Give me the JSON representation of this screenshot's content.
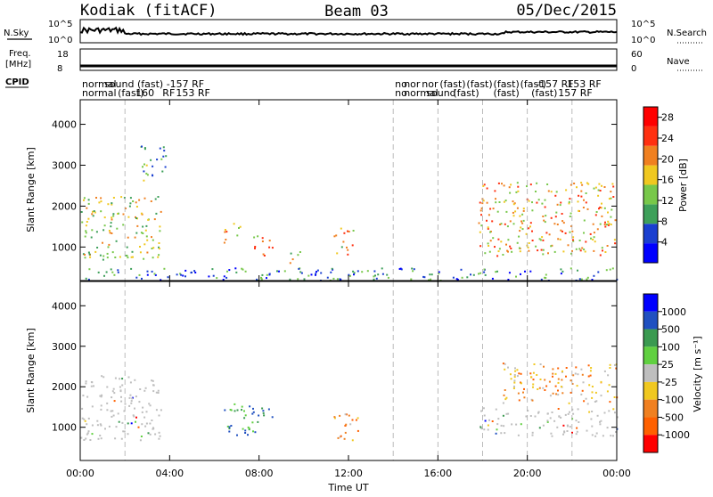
{
  "header": {
    "station": "Kodiak (fitACF)",
    "beam": "Beam 03",
    "date": "05/Dec/2015"
  },
  "strips": {
    "nsky_label": "N.Sky",
    "nsearch_label": "N.Search",
    "noise_ticks": [
      "10^5",
      "10^0"
    ],
    "freq_label_1": "Freq.",
    "freq_label_2": "[MHz]",
    "freq_ticks": [
      "18",
      "8"
    ],
    "nave_label": "Nave",
    "nave_ticks": [
      "60",
      "0"
    ],
    "cpid_label": "CPID"
  },
  "cpid_segments": {
    "row1": [
      {
        "t": 0.0,
        "text": "normal"
      },
      {
        "t": 1.0,
        "text": "sound (fast) -157 RF"
      },
      {
        "t": 14.0,
        "text": "no"
      },
      {
        "t": 14.4,
        "text": "nor"
      },
      {
        "t": 15.2,
        "text": "nor"
      },
      {
        "t": 16.0,
        "text": "(fast)"
      },
      {
        "t": 17.2,
        "text": "(fast)"
      },
      {
        "t": 18.4,
        "text": "(fast)"
      },
      {
        "t": 19.6,
        "text": "(fast)"
      },
      {
        "t": 20.3,
        "text": "-157 RF"
      },
      {
        "t": 21.7,
        "text": "153 RF"
      }
    ],
    "row2": [
      {
        "t": 0.0,
        "text": "normal"
      },
      {
        "t": 1.6,
        "text": "(fast)"
      },
      {
        "t": 2.4,
        "text": "160"
      },
      {
        "t": 3.6,
        "text": "RF"
      },
      {
        "t": 4.2,
        "text": "153 RF"
      },
      {
        "t": 14.0,
        "text": "no"
      },
      {
        "t": 14.4,
        "text": "normal"
      },
      {
        "t": 15.4,
        "text": "sound"
      },
      {
        "t": 16.6,
        "text": "(fast)"
      },
      {
        "t": 18.4,
        "text": "(fast)"
      },
      {
        "t": 20.1,
        "text": "(fast)"
      },
      {
        "t": 21.3,
        "text": "157 RF"
      }
    ]
  },
  "chart_data": [
    {
      "type": "heatmap",
      "ylabel": "Slant Range [km]",
      "xlabel": "Time UT",
      "x_ticks": [
        "00:00",
        "04:00",
        "08:00",
        "12:00",
        "16:00",
        "20:00",
        "00:00"
      ],
      "x_range_hours": [
        0,
        24
      ],
      "y_ticks": [
        1000,
        2000,
        3000,
        4000
      ],
      "ylim_km": [
        180,
        4600
      ],
      "colorbar_label": "Power [dB]",
      "colorbar_ticks": [
        4,
        8,
        12,
        16,
        20,
        24,
        28
      ],
      "colorbar_range": [
        0,
        30
      ],
      "colorbar_colors": [
        "#0000ff",
        "#1a3fd0",
        "#3ea05a",
        "#78c84a",
        "#f0c820",
        "#f08020",
        "#ff3010",
        "#ff0000"
      ],
      "scatter_regions": [
        {
          "t0": 0.0,
          "t1": 3.6,
          "r0": 700,
          "r1": 2300,
          "level": 14
        },
        {
          "t0": 2.6,
          "t1": 3.8,
          "r0": 2600,
          "r1": 3500,
          "level": 10
        },
        {
          "t0": 6.4,
          "t1": 7.2,
          "r0": 1100,
          "r1": 1600,
          "level": 16
        },
        {
          "t0": 7.6,
          "t1": 8.6,
          "r0": 800,
          "r1": 1300,
          "level": 18
        },
        {
          "t0": 9.3,
          "t1": 9.9,
          "r0": 400,
          "r1": 900,
          "level": 12
        },
        {
          "t0": 11.3,
          "t1": 12.2,
          "r0": 800,
          "r1": 1500,
          "level": 16
        },
        {
          "t0": 17.8,
          "t1": 24.0,
          "r0": 800,
          "r1": 2600,
          "level": 18
        },
        {
          "t0": 0.0,
          "t1": 24.0,
          "r0": 200,
          "r1": 500,
          "level": 6
        }
      ]
    },
    {
      "type": "heatmap",
      "ylabel": "Slant Range [km]",
      "xlabel": "Time UT",
      "x_ticks": [
        "00:00",
        "04:00",
        "08:00",
        "12:00",
        "16:00",
        "20:00",
        "00:00"
      ],
      "x_range_hours": [
        0,
        24
      ],
      "y_ticks": [
        1000,
        2000,
        3000,
        4000
      ],
      "ylim_km": [
        180,
        4600
      ],
      "colorbar_label": "Velocity [m s⁻¹]",
      "colorbar_ticks": [
        "1000",
        "500",
        "100",
        "25",
        "-25",
        "-100",
        "-500",
        "-1000"
      ],
      "colorbar_colors": [
        "#0000ff",
        "#2050c0",
        "#3a9a50",
        "#60d040",
        "#bebebe",
        "#f0c820",
        "#f08020",
        "#ff6000",
        "#ff0000"
      ],
      "scatter_regions": [
        {
          "t0": 0.0,
          "t1": 3.6,
          "r0": 700,
          "r1": 2300,
          "level": "ground"
        },
        {
          "t0": 6.4,
          "t1": 8.6,
          "r0": 800,
          "r1": 1600,
          "level": "positive"
        },
        {
          "t0": 11.3,
          "t1": 12.4,
          "r0": 700,
          "r1": 1500,
          "level": "negative"
        },
        {
          "t0": 18.8,
          "t1": 24.0,
          "r0": 1600,
          "r1": 2600,
          "level": "negative"
        },
        {
          "t0": 17.8,
          "t1": 24.0,
          "r0": 800,
          "r1": 1500,
          "level": "ground"
        }
      ]
    }
  ]
}
